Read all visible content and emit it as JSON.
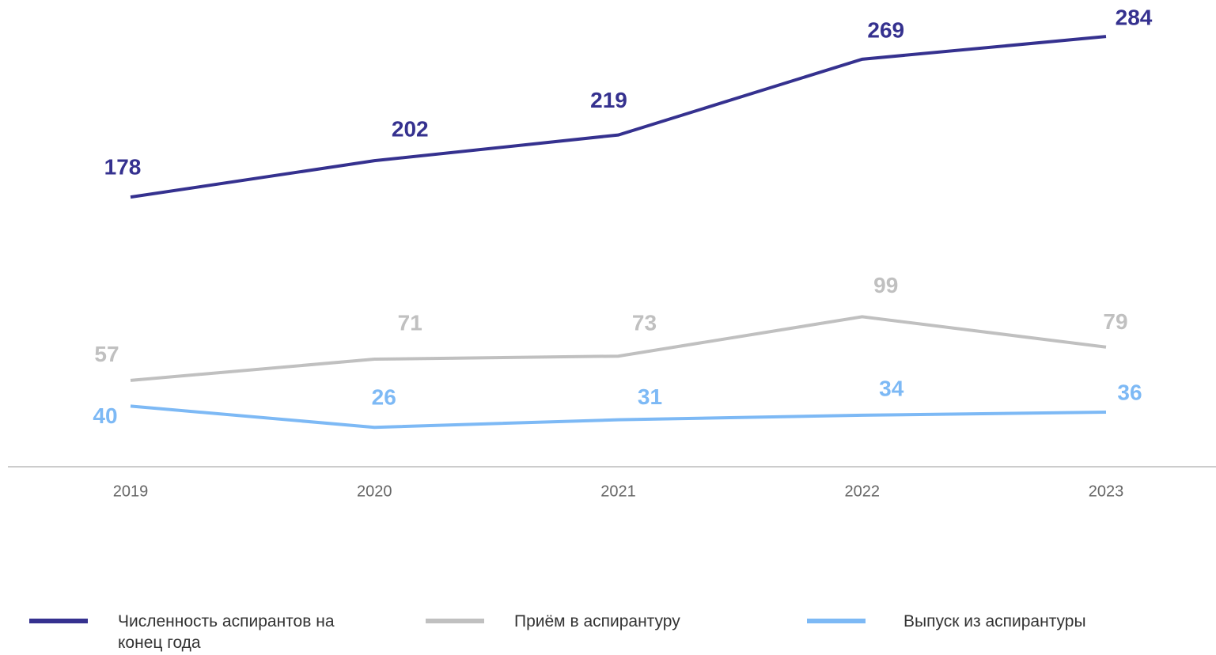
{
  "chart_data": {
    "type": "line",
    "x": [
      "2019",
      "2020",
      "2021",
      "2022",
      "2023"
    ],
    "series": [
      {
        "name": "Численность аспирантов на конец года",
        "color": "#35318f",
        "values": [
          178,
          202,
          219,
          269,
          284
        ]
      },
      {
        "name": "Приём в аспирантуру",
        "color": "#c0c0c0",
        "values": [
          57,
          71,
          73,
          99,
          79
        ]
      },
      {
        "name": "Выпуск из аспирантуры",
        "color": "#7db9f5",
        "values": [
          40,
          26,
          31,
          34,
          36
        ]
      }
    ],
    "ylim": [
      0,
      300
    ],
    "grid": false
  }
}
